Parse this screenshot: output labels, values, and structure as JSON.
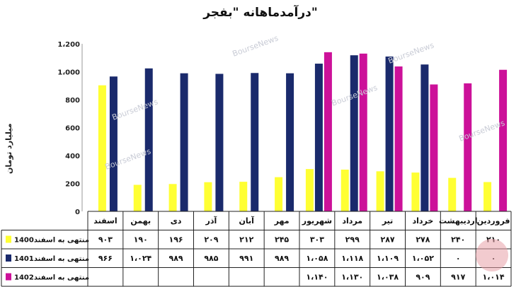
{
  "chart_data": {
    "type": "bar",
    "title": "درآمدماهانه \"بفجر\"",
    "ylabel": "میلیارد تومان",
    "ylim": [
      0,
      1200
    ],
    "yticks": [
      "0",
      "200",
      "400",
      "600",
      "800",
      "1،000",
      "1،200"
    ],
    "ytick_values": [
      0,
      200,
      400,
      600,
      800,
      1000,
      1200
    ],
    "grid": false,
    "categories": [
      "فروردین",
      "اردیبهشت",
      "خرداد",
      "تیر",
      "مرداد",
      "شهریور",
      "مهر",
      "آبان",
      "آذر",
      "دی",
      "بهمن",
      "اسفند"
    ],
    "series": [
      {
        "name": "منتهی به اسفند1400",
        "color": "#ffff33",
        "values": [
          210,
          240,
          278,
          287,
          299,
          303,
          245,
          212,
          209,
          196,
          190,
          903
        ],
        "labels": [
          "۲۱۰",
          "۲۴۰",
          "۲۷۸",
          "۲۸۷",
          "۲۹۹",
          "۳۰۳",
          "۲۴۵",
          "۲۱۲",
          "۲۰۹",
          "۱۹۶",
          "۱۹۰",
          "۹۰۳"
        ]
      },
      {
        "name": "منتهی به اسفند1401",
        "color": "#1a2a6c",
        "values": [
          0,
          0,
          1052,
          1109,
          1118,
          1058,
          989,
          991,
          985,
          989,
          1024,
          966
        ],
        "labels": [
          "۰",
          "۰",
          "۱،۰۵۲",
          "۱،۱۰۹",
          "۱،۱۱۸",
          "۱،۰۵۸",
          "۹۸۹",
          "۹۹۱",
          "۹۸۵",
          "۹۸۹",
          "۱،۰۲۴",
          "۹۶۶"
        ]
      },
      {
        "name": "منتهی به اسفند1402",
        "color": "#cc1199",
        "values": [
          1014,
          917,
          909,
          1038,
          1130,
          1140,
          null,
          null,
          null,
          null,
          null,
          null
        ],
        "labels": [
          "۱،۰۱۴",
          "۹۱۷",
          "۹۰۹",
          "۱،۰۳۸",
          "۱،۱۳۰",
          "۱،۱۴۰",
          "",
          "",
          "",
          "",
          "",
          ""
        ]
      }
    ]
  },
  "watermark": "BourseNews"
}
